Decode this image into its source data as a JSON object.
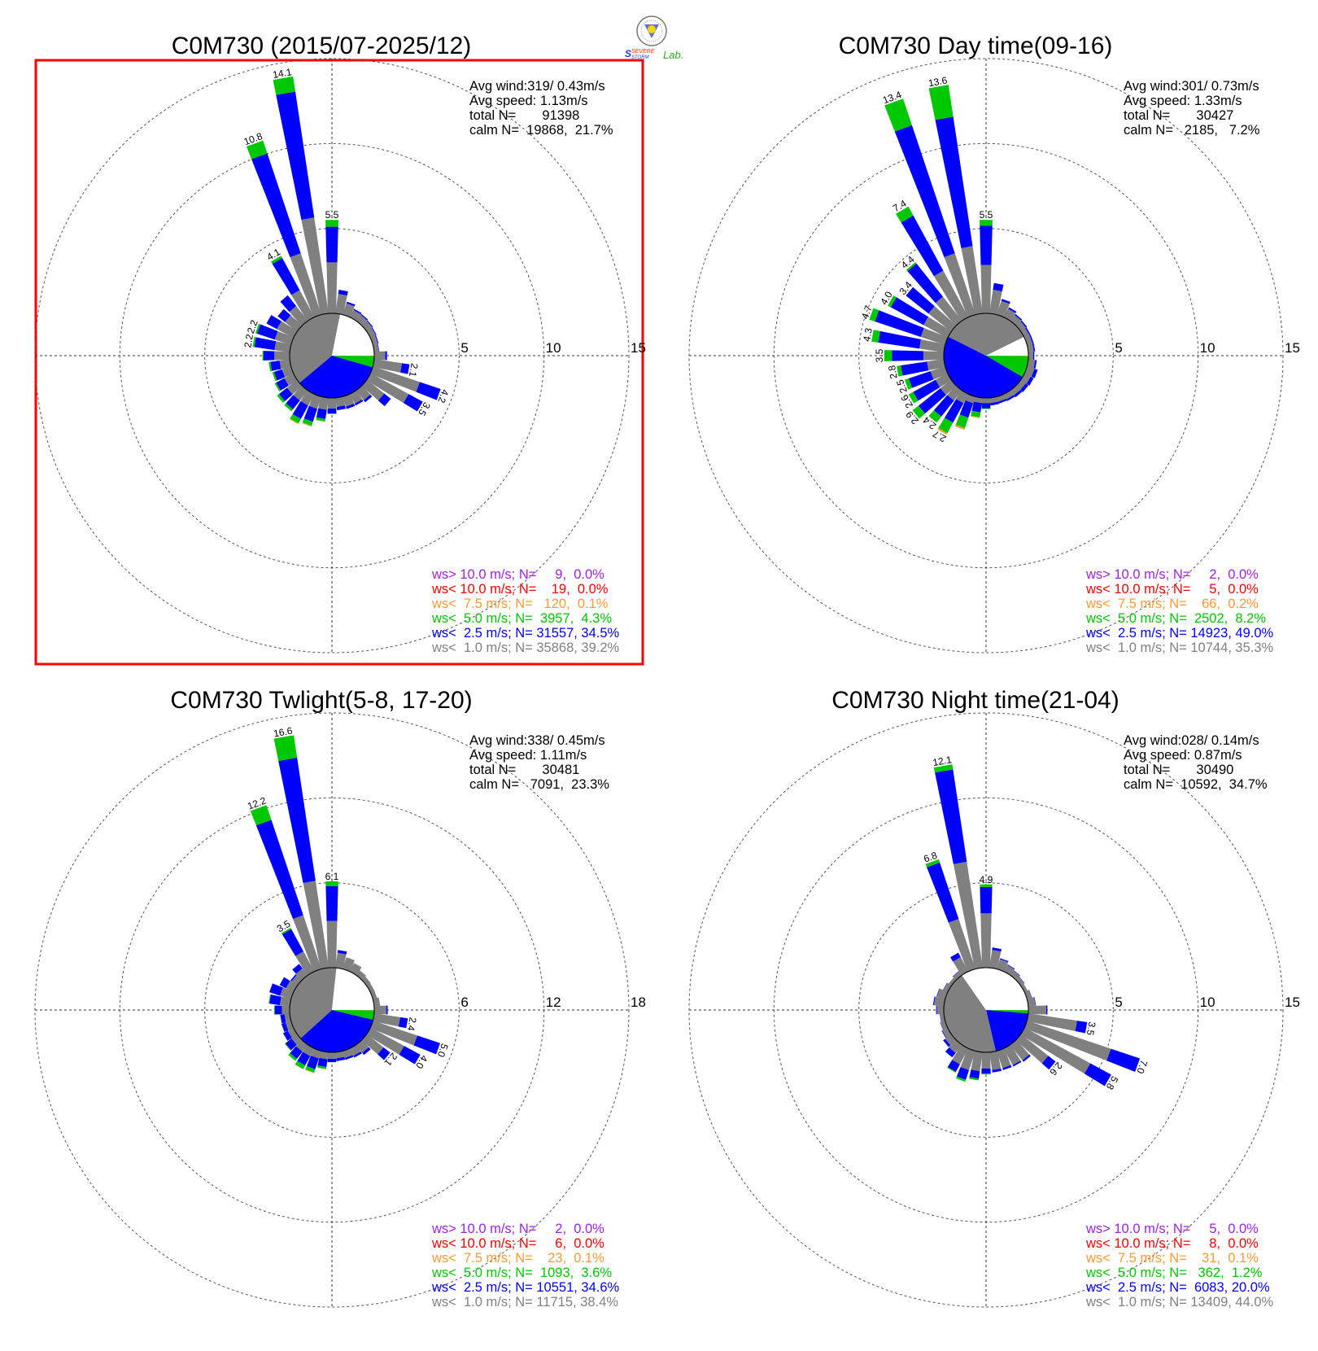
{
  "logo": {
    "text_line1": "SEVERE",
    "text_line2": "STORM",
    "text_lab": "Lab."
  },
  "colors": {
    "gt10": "#A020F0",
    "lt10": "#FF0000",
    "lt7_5": "#FF9933",
    "lt5": "#00C800",
    "lt2_5": "#0000FF",
    "lt1": "#808080",
    "calm": "#FFFFFF",
    "highlight_box": "#FF0000"
  },
  "chart_data": [
    {
      "type": "windrose",
      "title": "C0M730 (2015/07-2025/12)",
      "highlighted": true,
      "ring_ticks": [
        "5",
        "10",
        "15"
      ],
      "ring_values": [
        5,
        10,
        15
      ],
      "stats": [
        "Avg wind:319/ 0.43m/s",
        "Avg speed: 1.13m/s",
        "total N=       91398",
        "calm N=  19868,  21.7%"
      ],
      "calm_pct": 21.7,
      "legend": [
        {
          "text": "ws> 10.0 m/s; N=     9,  0.0%",
          "cls": "gt10",
          "pct": 0.0
        },
        {
          "text": "ws< 10.0 m/s; N=    19,  0.0%",
          "cls": "lt10",
          "pct": 0.0
        },
        {
          "text": "ws<  7.5 m/s; N=   120,  0.1%",
          "cls": "lt7_5",
          "pct": 0.1
        },
        {
          "text": "ws<  5.0 m/s; N=  3957,  4.3%",
          "cls": "lt5",
          "pct": 4.3
        },
        {
          "text": "ws<  2.5 m/s; N= 31557, 34.5%",
          "cls": "lt2_5",
          "pct": 34.5
        },
        {
          "text": "ws<  1.0 m/s; N= 35868, 39.2%",
          "cls": "lt1",
          "pct": 39.2
        }
      ],
      "direction_step_deg": 10,
      "segment_order": [
        "lt1",
        "lt2_5",
        "lt5",
        "lt7_5"
      ],
      "bars": [
        [
          3.0,
          2.1,
          0.4
        ],
        [
          1.15,
          0.25
        ],
        [
          0.7,
          0.1
        ],
        [
          0.47,
          0.08
        ],
        [
          0.43,
          0.07
        ],
        [
          0.4,
          0.05
        ],
        [
          0.35,
          0.05
        ],
        [
          0.3,
          0.05
        ],
        [
          0.27,
          0.03
        ],
        [
          0.65,
          0.1
        ],
        [
          1.65,
          0.45
        ],
        [
          2.9,
          1.3
        ],
        [
          2.55,
          0.95
        ],
        [
          1.3,
          0.5
        ],
        [
          0.72,
          0.15
        ],
        [
          0.63,
          0.12
        ],
        [
          0.61,
          0.15
        ],
        [
          0.53,
          0.2
        ],
        [
          0.62,
          0.3,
          0.02
        ],
        [
          0.7,
          0.55,
          0.15
        ],
        [
          0.75,
          0.8,
          0.25,
          0.05
        ],
        [
          0.75,
          0.9,
          0.3,
          0.05
        ],
        [
          0.75,
          0.65,
          0.15
        ],
        [
          0.75,
          0.6,
          0.15
        ],
        [
          0.6,
          0.55,
          0.1
        ],
        [
          0.55,
          0.5,
          0.1
        ],
        [
          0.6,
          0.55,
          0.1
        ],
        [
          0.9,
          0.65,
          0.05
        ],
        [
          0.9,
          1.2,
          0.1
        ],
        [
          1.0,
          1.1,
          0.1
        ],
        [
          1.1,
          0.7
        ],
        [
          0.9,
          0.55
        ],
        [
          1.1,
          0.8
        ],
        [
          1.8,
          2.15,
          0.15
        ],
        [
          3.8,
          6.2,
          0.8
        ],
        [
          5.7,
          7.5,
          0.9
        ]
      ],
      "bar_labels": {
        "0": "5.5",
        "100": "2.1",
        "110": "4.2",
        "120": "3.5",
        "280": "2.2",
        "290": "2.2",
        "330": "4.1",
        "340": "10.8",
        "350": "14.1"
      }
    },
    {
      "type": "windrose",
      "title": "C0M730 Day time(09-16)",
      "highlighted": false,
      "ring_ticks": [
        "5",
        "10",
        "15"
      ],
      "ring_values": [
        5,
        10,
        15
      ],
      "stats": [
        "Avg wind:301/ 0.73m/s",
        "Avg speed: 1.33m/s",
        "total N=       30427",
        "calm N=   2185,   7.2%"
      ],
      "calm_pct": 7.2,
      "legend": [
        {
          "text": "ws> 10.0 m/s; N=     2,  0.0%",
          "cls": "gt10",
          "pct": 0.0
        },
        {
          "text": "ws< 10.0 m/s; N=     5,  0.0%",
          "cls": "lt10",
          "pct": 0.0
        },
        {
          "text": "ws<  7.5 m/s; N=    66,  0.2%",
          "cls": "lt7_5",
          "pct": 0.2
        },
        {
          "text": "ws<  5.0 m/s; N=  2502,  8.2%",
          "cls": "lt5",
          "pct": 8.2
        },
        {
          "text": "ws<  2.5 m/s; N= 14923, 49.0%",
          "cls": "lt2_5",
          "pct": 49.0
        },
        {
          "text": "ws<  1.0 m/s; N= 10744, 35.3%",
          "cls": "lt1",
          "pct": 35.3
        }
      ],
      "direction_step_deg": 10,
      "segment_order": [
        "lt1",
        "lt2_5",
        "lt5",
        "lt7_5"
      ],
      "bars": [
        [
          2.85,
          2.3,
          0.35
        ],
        [
          1.4,
          0.4
        ],
        [
          0.85,
          0.12
        ],
        [
          0.55,
          0.1
        ],
        [
          0.42,
          0.08
        ],
        [
          0.37,
          0.08
        ],
        [
          0.32,
          0.08
        ],
        [
          0.32,
          0.08
        ],
        [
          0.32,
          0.08
        ],
        [
          0.28,
          0.07
        ],
        [
          0.4,
          0.1
        ],
        [
          0.45,
          0.2
        ],
        [
          0.4,
          0.2
        ],
        [
          0.35,
          0.2
        ],
        [
          0.35,
          0.15
        ],
        [
          0.33,
          0.12
        ],
        [
          0.3,
          0.12
        ],
        [
          0.3,
          0.15
        ],
        [
          0.3,
          0.3,
          0.05
        ],
        [
          0.3,
          0.55,
          0.3,
          0.05
        ],
        [
          0.4,
          0.9,
          0.65,
          0.1
        ],
        [
          0.6,
          1.3,
          0.7,
          0.1
        ],
        [
          0.75,
          1.2,
          0.45
        ],
        [
          0.8,
          1.65,
          0.45
        ],
        [
          0.8,
          1.5,
          0.3
        ],
        [
          0.9,
          1.35,
          0.25
        ],
        [
          1.0,
          1.55,
          0.25
        ],
        [
          1.2,
          1.85,
          0.45
        ],
        [
          1.45,
          2.45,
          0.4
        ],
        [
          1.5,
          2.85,
          0.35
        ],
        [
          1.6,
          2.2,
          0.2
        ],
        [
          1.7,
          1.7
        ],
        [
          1.8,
          2.5,
          0.1
        ],
        [
          3.1,
          3.7,
          0.6
        ],
        [
          3.8,
          7.95,
          1.65
        ],
        [
          4.0,
          7.7,
          1.9
        ]
      ],
      "bar_labels": {
        "0": "5.5",
        "210": "2.7",
        "220": "2.4",
        "230": "2.9",
        "240": "2.6",
        "250": "2.5",
        "260": "2.8",
        "270": "3.5",
        "280": "4.3",
        "290": "4.7",
        "300": "4.0",
        "310": "3.4",
        "320": "4.4",
        "330": "7.4",
        "340": "13.4",
        "350": "13.6"
      }
    },
    {
      "type": "windrose",
      "title": "C0M730 Twlight(5-8, 17-20)",
      "highlighted": false,
      "ring_ticks": [
        "6",
        "12",
        "18"
      ],
      "ring_values": [
        6,
        12,
        18
      ],
      "stats": [
        "Avg wind:338/ 0.45m/s",
        "Avg speed: 1.11m/s",
        "total N=       30481",
        "calm N=   7091,  23.3%"
      ],
      "calm_pct": 23.3,
      "legend": [
        {
          "text": "ws> 10.0 m/s; N=     2,  0.0%",
          "cls": "gt10",
          "pct": 0.0
        },
        {
          "text": "ws< 10.0 m/s; N=     6,  0.0%",
          "cls": "lt10",
          "pct": 0.0
        },
        {
          "text": "ws<  7.5 m/s; N=    23,  0.1%",
          "cls": "lt7_5",
          "pct": 0.1
        },
        {
          "text": "ws<  5.0 m/s; N=  1093,  3.6%",
          "cls": "lt5",
          "pct": 3.6
        },
        {
          "text": "ws<  2.5 m/s; N= 10551, 34.6%",
          "cls": "lt2_5",
          "pct": 34.6
        },
        {
          "text": "ws<  1.0 m/s; N= 11715, 38.4%",
          "cls": "lt1",
          "pct": 38.4
        }
      ],
      "direction_step_deg": 10,
      "segment_order": [
        "lt1",
        "lt2_5",
        "lt5",
        "lt7_5"
      ],
      "bars": [
        [
          3.3,
          2.45,
          0.35
        ],
        [
          1.06,
          0.2
        ],
        [
          0.86
        ],
        [
          0.67
        ],
        [
          0.42
        ],
        [
          0.34
        ],
        [
          0.3
        ],
        [
          0.3
        ],
        [
          0.42
        ],
        [
          0.85,
          0.1
        ],
        [
          1.85,
          0.55
        ],
        [
          3.3,
          1.7
        ],
        [
          2.7,
          1.3
        ],
        [
          1.5,
          0.6
        ],
        [
          0.7,
          0.2
        ],
        [
          0.57,
          0.15
        ],
        [
          0.5,
          0.15
        ],
        [
          0.43,
          0.2
        ],
        [
          0.45,
          0.25
        ],
        [
          0.5,
          0.55,
          0.15
        ],
        [
          0.55,
          0.8,
          0.25,
          0.04
        ],
        [
          0.6,
          0.75,
          0.3
        ],
        [
          0.6,
          0.65,
          0.18
        ],
        [
          0.5,
          0.55,
          0.05
        ],
        [
          0.45,
          0.37
        ],
        [
          0.4,
          0.3
        ],
        [
          0.37,
          0.3
        ],
        [
          0.55,
          0.5,
          0.05
        ],
        [
          0.7,
          0.75,
          0.05
        ],
        [
          0.8,
          0.8
        ],
        [
          0.6,
          0.5
        ],
        [
          0.5,
          0.1
        ],
        [
          0.6,
          0.4
        ],
        [
          1.6,
          1.8,
          0.1
        ],
        [
          4.0,
          7.1,
          1.1
        ],
        [
          6.2,
          8.8,
          1.6
        ]
      ],
      "bar_labels": {
        "0": "6.1",
        "100": "2.4",
        "110": "5.0",
        "120": "4.0",
        "130": "2.1",
        "330": "3.5",
        "340": "12.2",
        "350": "16.6"
      }
    },
    {
      "type": "windrose",
      "title": "C0M730 Night time(21-04)",
      "highlighted": false,
      "ring_ticks": [
        "5",
        "10",
        "15"
      ],
      "ring_values": [
        5,
        10,
        15
      ],
      "stats": [
        "Avg wind:028/ 0.14m/s",
        "Avg speed: 0.87m/s",
        "total N=       30490",
        "calm N=  10592,  34.7%"
      ],
      "calm_pct": 34.7,
      "legend": [
        {
          "text": "ws> 10.0 m/s; N=     5,  0.0%",
          "cls": "gt10",
          "pct": 0.0
        },
        {
          "text": "ws< 10.0 m/s; N=     8,  0.0%",
          "cls": "lt10",
          "pct": 0.0
        },
        {
          "text": "ws<  7.5 m/s; N=    31,  0.1%",
          "cls": "lt7_5",
          "pct": 0.1
        },
        {
          "text": "ws<  5.0 m/s; N=   362,  1.2%",
          "cls": "lt5",
          "pct": 1.2
        },
        {
          "text": "ws<  2.5 m/s; N=  6083, 20.0%",
          "cls": "lt2_5",
          "pct": 20.0
        },
        {
          "text": "ws<  1.0 m/s; N= 13409, 44.0%",
          "cls": "lt1",
          "pct": 44.0
        }
      ],
      "direction_step_deg": 10,
      "segment_order": [
        "lt1",
        "lt2_5",
        "lt5",
        "lt7_5"
      ],
      "bars": [
        [
          3.2,
          1.55,
          0.15
        ],
        [
          1.05,
          0.15
        ],
        [
          0.6,
          0.06
        ],
        [
          0.42,
          0.04
        ],
        [
          0.32,
          0.03
        ],
        [
          0.25,
          0.02
        ],
        [
          0.2
        ],
        [
          0.28,
          0.02
        ],
        [
          0.42,
          0.03
        ],
        [
          1.05,
          0.07
        ],
        [
          2.9,
          0.6
        ],
        [
          5.2,
          1.8
        ],
        [
          4.4,
          1.4
        ],
        [
          2.05,
          0.55
        ],
        [
          1.15,
          0.12
        ],
        [
          1.1,
          0.1
        ],
        [
          1.06,
          0.12
        ],
        [
          1.05,
          0.15
        ],
        [
          0.95,
          0.3,
          0.05
        ],
        [
          1.12,
          0.45,
          0.1
        ],
        [
          1.18,
          0.6,
          0.12
        ],
        [
          1.05,
          0.5,
          0.05
        ],
        [
          0.6,
          0.33
        ],
        [
          0.45,
          0.15
        ],
        [
          0.35,
          0.04
        ],
        [
          0.28,
          0.02
        ],
        [
          0.22,
          0.02
        ],
        [
          0.4,
          0.05
        ],
        [
          0.59,
          0.05
        ],
        [
          0.5,
          0.03
        ],
        [
          0.28,
          0.02
        ],
        [
          0.2
        ],
        [
          0.28,
          0.02
        ],
        [
          0.95,
          0.3
        ],
        [
          3.1,
          3.5,
          0.2
        ],
        [
          6.3,
          5.5,
          0.3
        ]
      ],
      "bar_labels": {
        "0": "4.9",
        "100": "3.5",
        "110": "7.0",
        "120": "5.8",
        "130": "2.6",
        "340": "6.8",
        "350": "12.1"
      }
    }
  ]
}
